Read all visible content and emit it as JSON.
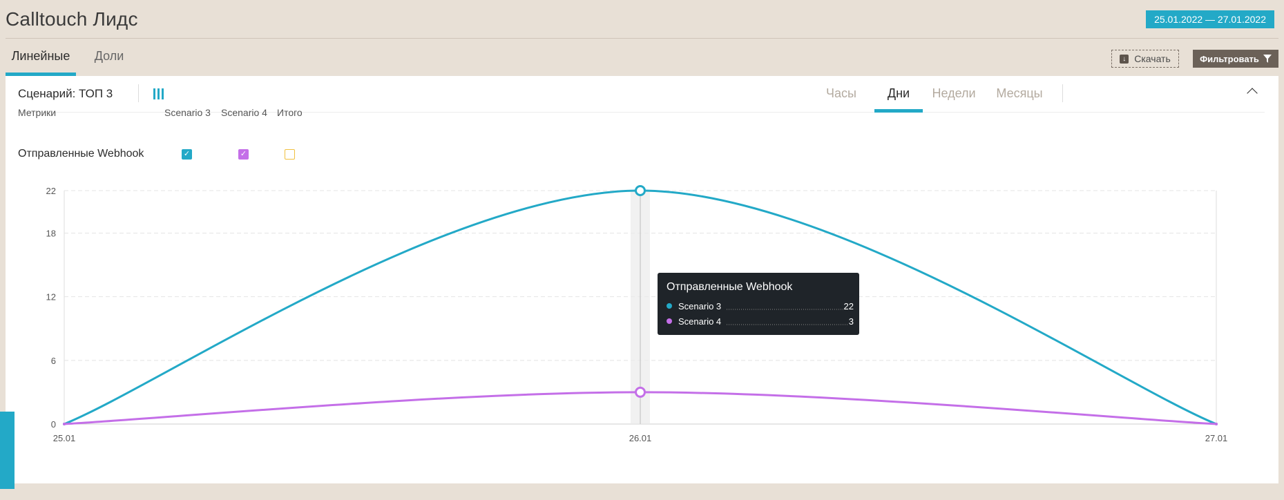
{
  "app": {
    "title": "Calltouch Лидс",
    "date_range": "25.01.2022 — 27.01.2022"
  },
  "tabs": [
    {
      "label": "Линейные",
      "active": true
    },
    {
      "label": "Доли",
      "active": false
    }
  ],
  "toolbar": {
    "download_label": "Скачать",
    "filter_label": "Фильтровать"
  },
  "panel": {
    "scenario_title": "Сценарий: ТОП 3",
    "periods": [
      {
        "label": "Часы",
        "active": false
      },
      {
        "label": "Дни",
        "active": true
      },
      {
        "label": "Недели",
        "active": false
      },
      {
        "label": "Месяцы",
        "active": false
      }
    ]
  },
  "metrics_table": {
    "header": "Метрики",
    "columns": [
      "Scenario 3",
      "Scenario 4",
      "Итого"
    ],
    "rows": [
      {
        "name": "Отправленные Webhook",
        "checked": [
          true,
          true,
          false
        ]
      }
    ]
  },
  "colors": {
    "scenario3": "#23a9c7",
    "scenario4": "#c46fe8",
    "total": "#f0c040",
    "accent": "#23a9c7"
  },
  "chart_data": {
    "type": "line",
    "x": [
      "25.01",
      "26.01",
      "27.01"
    ],
    "series": [
      {
        "name": "Scenario 3",
        "values": [
          0,
          22,
          0
        ]
      },
      {
        "name": "Scenario 4",
        "values": [
          0,
          3,
          0
        ]
      }
    ],
    "ylim": [
      0,
      22
    ],
    "yticks": [
      0,
      6,
      12,
      18,
      22
    ],
    "grid": true,
    "tooltip": {
      "title": "Отправленные Webhook",
      "x": "26.01",
      "items": [
        {
          "name": "Scenario 3",
          "value": "22"
        },
        {
          "name": "Scenario 4",
          "value": "3"
        }
      ]
    }
  }
}
